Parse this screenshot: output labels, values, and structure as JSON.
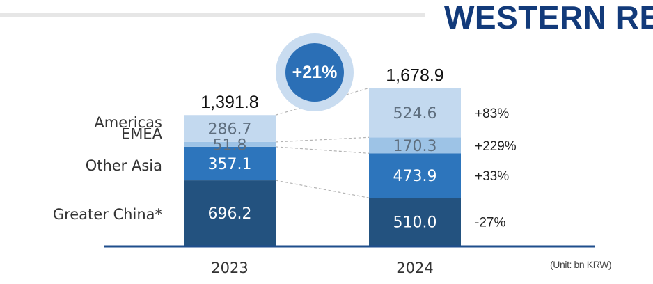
{
  "header": {
    "title": "WESTERN RE"
  },
  "unit_note": "(Unit: bn KRW)",
  "growth_badge": "+21%",
  "colors": {
    "Greater China*": "#23527f",
    "Other Asia": "#2d75bc",
    "EMEA": "#9dc3e6",
    "Americas": "#c3d9ef",
    "axis": "#1f4e8c",
    "connector": "#b3b3b3"
  },
  "chart_data": {
    "type": "bar",
    "stacked": true,
    "title": "",
    "xlabel": "",
    "ylabel": "",
    "categories": [
      "2023",
      "2024"
    ],
    "series": [
      {
        "name": "Greater China*",
        "values": [
          696.2,
          510.0
        ],
        "labels": [
          "696.2",
          "510.0"
        ],
        "growth": "-27%"
      },
      {
        "name": "Other Asia",
        "values": [
          357.1,
          473.9
        ],
        "labels": [
          "357.1",
          "473.9"
        ],
        "growth": "+33%"
      },
      {
        "name": "EMEA",
        "values": [
          51.8,
          170.3
        ],
        "labels": [
          "51.8",
          "170.3"
        ],
        "growth": "+229%"
      },
      {
        "name": "Americas",
        "values": [
          286.7,
          524.6
        ],
        "labels": [
          "286.7",
          "524.6"
        ],
        "growth": "+83%"
      }
    ],
    "totals": [
      "1,391.8",
      "1,678.9"
    ],
    "grid": false,
    "legend": "left of first bar"
  }
}
